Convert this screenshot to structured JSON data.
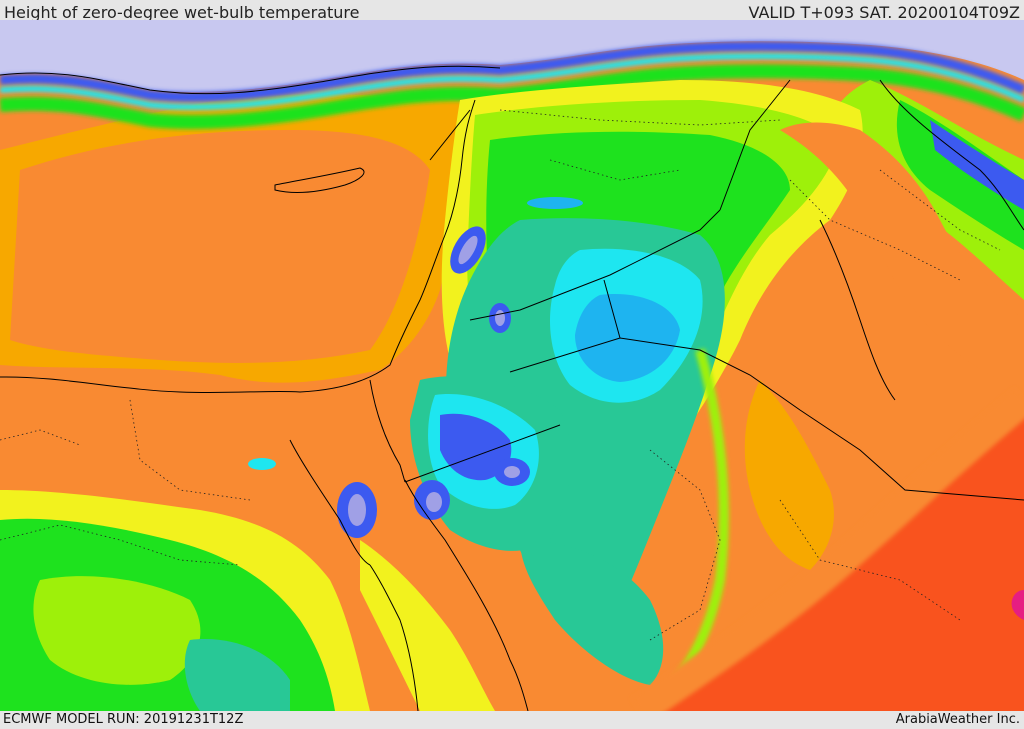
{
  "header": {
    "title": "Height of zero-degree wet-bulb temperature",
    "valid_time": "VALID T+093 SAT. 20200104T09Z"
  },
  "footer": {
    "model_run": "ECMWF MODEL RUN: 20191231T12Z",
    "credit": "ArabiaWeather Inc."
  },
  "colors": {
    "sea_orange": "#f7a800",
    "land_orange": "#f98a32",
    "red_orange": "#f9531e",
    "yellow": "#f2f21e",
    "lime": "#9ef00a",
    "green": "#1ee21e",
    "teal": "#28c896",
    "cyan": "#1ee6f0",
    "sky": "#1eb4f0",
    "blue": "#3c5af0",
    "lavender": "#a0a0e6",
    "pale_lavender": "#c8c8f0",
    "magenta": "#e61e82",
    "border": "#000000"
  }
}
